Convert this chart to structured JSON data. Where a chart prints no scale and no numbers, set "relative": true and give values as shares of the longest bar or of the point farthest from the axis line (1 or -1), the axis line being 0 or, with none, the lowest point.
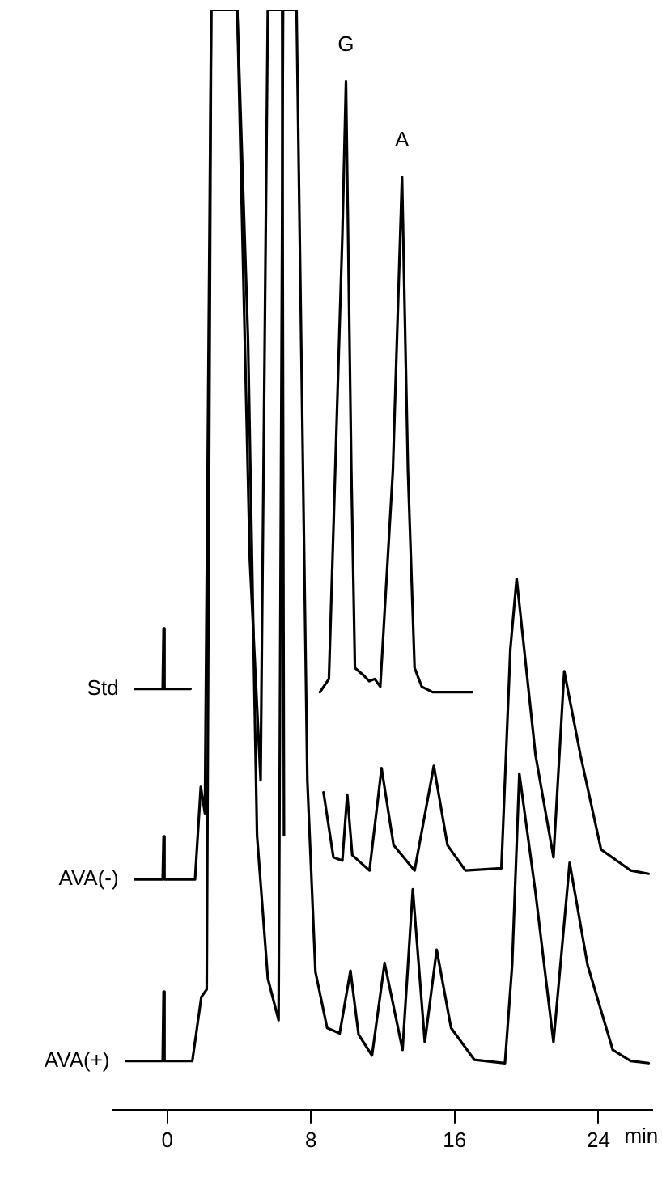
{
  "chart_data": {
    "type": "line",
    "relative": true,
    "xlabel": "min",
    "xlim": [
      -3,
      27
    ],
    "xticks": [
      0,
      8,
      16,
      24
    ],
    "marker": "none",
    "line_style": "solid",
    "annotations": [
      {
        "text": "G",
        "x": 9.95,
        "y": 0.935
      },
      {
        "text": "A",
        "x": 13.07,
        "y": 0.848
      }
    ],
    "series": [
      {
        "name": "Std",
        "color": "#000000",
        "x": [
          -1.8,
          -0.25,
          -0.2,
          -0.15,
          1.3,
          5,
          8.5,
          9.0,
          9.75,
          9.95,
          10.25,
          10.45,
          10.95,
          11.25,
          11.55,
          11.86,
          12.56,
          13.07,
          13.4,
          13.77,
          14.17,
          14.77,
          16.98
        ],
        "values": [
          0.383,
          0.383,
          0.438,
          0.383,
          0.383,
          null,
          0.38,
          0.392,
          0.796,
          0.935,
          0.581,
          0.402,
          0.395,
          0.39,
          0.392,
          0.385,
          0.581,
          0.848,
          0.581,
          0.402,
          0.385,
          0.38,
          0.38
        ]
      },
      {
        "name": "AVA(-)",
        "color": "#000000",
        "x": [
          -1.8,
          -0.25,
          -0.2,
          -0.15,
          1.55,
          1.87,
          2.1,
          2.45,
          3.9,
          4.6,
          5.2,
          5.6,
          6.4,
          6.5,
          7.5,
          8.7,
          9.25,
          9.75,
          10.02,
          10.3,
          11.26,
          11.93,
          12.6,
          13.77,
          14.84,
          15.6,
          16.6,
          18.6,
          19.1,
          19.45,
          20.5,
          21.5,
          22.1,
          23.0,
          24.15,
          25.8,
          26.8
        ],
        "values": [
          0.21,
          0.21,
          0.249,
          0.21,
          0.21,
          0.294,
          0.27,
          1,
          1,
          0.5,
          0.3,
          1,
          1,
          0.25,
          null,
          0.289,
          0.23,
          0.227,
          0.287,
          0.232,
          0.218,
          0.311,
          0.241,
          0.218,
          0.313,
          0.241,
          0.218,
          0.22,
          0.419,
          0.483,
          0.323,
          0.23,
          0.399,
          0.323,
          0.237,
          0.218,
          0.215
        ]
      },
      {
        "name": "AVA(+)",
        "color": "#000000",
        "x": [
          -2.3,
          -0.25,
          -0.2,
          -0.15,
          1.4,
          1.9,
          2.2,
          2.45,
          3.9,
          4.5,
          5.0,
          5.6,
          6.2,
          6.45,
          7.2,
          7.8,
          8.25,
          8.9,
          9.6,
          10.2,
          10.65,
          11.4,
          12.1,
          13.1,
          13.67,
          14.34,
          15.0,
          15.8,
          17.1,
          18.8,
          19.2,
          19.6,
          20.5,
          21.5,
          22.4,
          23.4,
          24.8,
          25.8,
          26.8
        ],
        "values": [
          0.045,
          0.045,
          0.108,
          0.045,
          0.045,
          0.103,
          0.11,
          1,
          1,
          0.7,
          0.25,
          0.12,
          0.082,
          1,
          1,
          0.3,
          0.126,
          0.075,
          0.07,
          0.127,
          0.069,
          0.05,
          0.134,
          0.055,
          0.201,
          0.062,
          0.146,
          0.075,
          0.046,
          0.043,
          0.132,
          0.306,
          0.198,
          0.062,
          0.225,
          0.132,
          0.055,
          0.045,
          0.043
        ]
      }
    ]
  }
}
